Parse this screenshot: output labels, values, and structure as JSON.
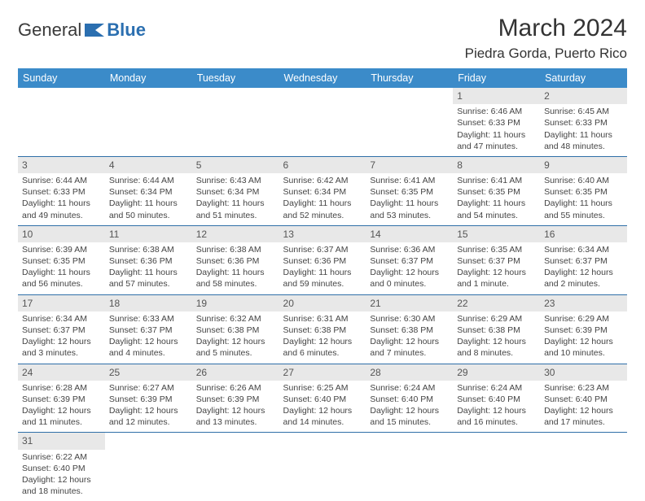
{
  "brand": {
    "part1": "General",
    "part2": "Blue"
  },
  "title": "March 2024",
  "location": "Piedra Gorda, Puerto Rico",
  "colors": {
    "header_bg": "#3b8bc9",
    "header_text": "#ffffff",
    "row_divider": "#2f6fa8",
    "daynum_bg": "#e8e8e8",
    "text": "#333333",
    "logo_blue": "#2b6fb0"
  },
  "weekdays": [
    "Sunday",
    "Monday",
    "Tuesday",
    "Wednesday",
    "Thursday",
    "Friday",
    "Saturday"
  ],
  "weeks": [
    [
      {
        "day": "",
        "sunrise": "",
        "sunset": "",
        "daylight": ""
      },
      {
        "day": "",
        "sunrise": "",
        "sunset": "",
        "daylight": ""
      },
      {
        "day": "",
        "sunrise": "",
        "sunset": "",
        "daylight": ""
      },
      {
        "day": "",
        "sunrise": "",
        "sunset": "",
        "daylight": ""
      },
      {
        "day": "",
        "sunrise": "",
        "sunset": "",
        "daylight": ""
      },
      {
        "day": "1",
        "sunrise": "Sunrise: 6:46 AM",
        "sunset": "Sunset: 6:33 PM",
        "daylight": "Daylight: 11 hours and 47 minutes."
      },
      {
        "day": "2",
        "sunrise": "Sunrise: 6:45 AM",
        "sunset": "Sunset: 6:33 PM",
        "daylight": "Daylight: 11 hours and 48 minutes."
      }
    ],
    [
      {
        "day": "3",
        "sunrise": "Sunrise: 6:44 AM",
        "sunset": "Sunset: 6:33 PM",
        "daylight": "Daylight: 11 hours and 49 minutes."
      },
      {
        "day": "4",
        "sunrise": "Sunrise: 6:44 AM",
        "sunset": "Sunset: 6:34 PM",
        "daylight": "Daylight: 11 hours and 50 minutes."
      },
      {
        "day": "5",
        "sunrise": "Sunrise: 6:43 AM",
        "sunset": "Sunset: 6:34 PM",
        "daylight": "Daylight: 11 hours and 51 minutes."
      },
      {
        "day": "6",
        "sunrise": "Sunrise: 6:42 AM",
        "sunset": "Sunset: 6:34 PM",
        "daylight": "Daylight: 11 hours and 52 minutes."
      },
      {
        "day": "7",
        "sunrise": "Sunrise: 6:41 AM",
        "sunset": "Sunset: 6:35 PM",
        "daylight": "Daylight: 11 hours and 53 minutes."
      },
      {
        "day": "8",
        "sunrise": "Sunrise: 6:41 AM",
        "sunset": "Sunset: 6:35 PM",
        "daylight": "Daylight: 11 hours and 54 minutes."
      },
      {
        "day": "9",
        "sunrise": "Sunrise: 6:40 AM",
        "sunset": "Sunset: 6:35 PM",
        "daylight": "Daylight: 11 hours and 55 minutes."
      }
    ],
    [
      {
        "day": "10",
        "sunrise": "Sunrise: 6:39 AM",
        "sunset": "Sunset: 6:35 PM",
        "daylight": "Daylight: 11 hours and 56 minutes."
      },
      {
        "day": "11",
        "sunrise": "Sunrise: 6:38 AM",
        "sunset": "Sunset: 6:36 PM",
        "daylight": "Daylight: 11 hours and 57 minutes."
      },
      {
        "day": "12",
        "sunrise": "Sunrise: 6:38 AM",
        "sunset": "Sunset: 6:36 PM",
        "daylight": "Daylight: 11 hours and 58 minutes."
      },
      {
        "day": "13",
        "sunrise": "Sunrise: 6:37 AM",
        "sunset": "Sunset: 6:36 PM",
        "daylight": "Daylight: 11 hours and 59 minutes."
      },
      {
        "day": "14",
        "sunrise": "Sunrise: 6:36 AM",
        "sunset": "Sunset: 6:37 PM",
        "daylight": "Daylight: 12 hours and 0 minutes."
      },
      {
        "day": "15",
        "sunrise": "Sunrise: 6:35 AM",
        "sunset": "Sunset: 6:37 PM",
        "daylight": "Daylight: 12 hours and 1 minute."
      },
      {
        "day": "16",
        "sunrise": "Sunrise: 6:34 AM",
        "sunset": "Sunset: 6:37 PM",
        "daylight": "Daylight: 12 hours and 2 minutes."
      }
    ],
    [
      {
        "day": "17",
        "sunrise": "Sunrise: 6:34 AM",
        "sunset": "Sunset: 6:37 PM",
        "daylight": "Daylight: 12 hours and 3 minutes."
      },
      {
        "day": "18",
        "sunrise": "Sunrise: 6:33 AM",
        "sunset": "Sunset: 6:37 PM",
        "daylight": "Daylight: 12 hours and 4 minutes."
      },
      {
        "day": "19",
        "sunrise": "Sunrise: 6:32 AM",
        "sunset": "Sunset: 6:38 PM",
        "daylight": "Daylight: 12 hours and 5 minutes."
      },
      {
        "day": "20",
        "sunrise": "Sunrise: 6:31 AM",
        "sunset": "Sunset: 6:38 PM",
        "daylight": "Daylight: 12 hours and 6 minutes."
      },
      {
        "day": "21",
        "sunrise": "Sunrise: 6:30 AM",
        "sunset": "Sunset: 6:38 PM",
        "daylight": "Daylight: 12 hours and 7 minutes."
      },
      {
        "day": "22",
        "sunrise": "Sunrise: 6:29 AM",
        "sunset": "Sunset: 6:38 PM",
        "daylight": "Daylight: 12 hours and 8 minutes."
      },
      {
        "day": "23",
        "sunrise": "Sunrise: 6:29 AM",
        "sunset": "Sunset: 6:39 PM",
        "daylight": "Daylight: 12 hours and 10 minutes."
      }
    ],
    [
      {
        "day": "24",
        "sunrise": "Sunrise: 6:28 AM",
        "sunset": "Sunset: 6:39 PM",
        "daylight": "Daylight: 12 hours and 11 minutes."
      },
      {
        "day": "25",
        "sunrise": "Sunrise: 6:27 AM",
        "sunset": "Sunset: 6:39 PM",
        "daylight": "Daylight: 12 hours and 12 minutes."
      },
      {
        "day": "26",
        "sunrise": "Sunrise: 6:26 AM",
        "sunset": "Sunset: 6:39 PM",
        "daylight": "Daylight: 12 hours and 13 minutes."
      },
      {
        "day": "27",
        "sunrise": "Sunrise: 6:25 AM",
        "sunset": "Sunset: 6:40 PM",
        "daylight": "Daylight: 12 hours and 14 minutes."
      },
      {
        "day": "28",
        "sunrise": "Sunrise: 6:24 AM",
        "sunset": "Sunset: 6:40 PM",
        "daylight": "Daylight: 12 hours and 15 minutes."
      },
      {
        "day": "29",
        "sunrise": "Sunrise: 6:24 AM",
        "sunset": "Sunset: 6:40 PM",
        "daylight": "Daylight: 12 hours and 16 minutes."
      },
      {
        "day": "30",
        "sunrise": "Sunrise: 6:23 AM",
        "sunset": "Sunset: 6:40 PM",
        "daylight": "Daylight: 12 hours and 17 minutes."
      }
    ],
    [
      {
        "day": "31",
        "sunrise": "Sunrise: 6:22 AM",
        "sunset": "Sunset: 6:40 PM",
        "daylight": "Daylight: 12 hours and 18 minutes."
      },
      {
        "day": "",
        "sunrise": "",
        "sunset": "",
        "daylight": ""
      },
      {
        "day": "",
        "sunrise": "",
        "sunset": "",
        "daylight": ""
      },
      {
        "day": "",
        "sunrise": "",
        "sunset": "",
        "daylight": ""
      },
      {
        "day": "",
        "sunrise": "",
        "sunset": "",
        "daylight": ""
      },
      {
        "day": "",
        "sunrise": "",
        "sunset": "",
        "daylight": ""
      },
      {
        "day": "",
        "sunrise": "",
        "sunset": "",
        "daylight": ""
      }
    ]
  ]
}
